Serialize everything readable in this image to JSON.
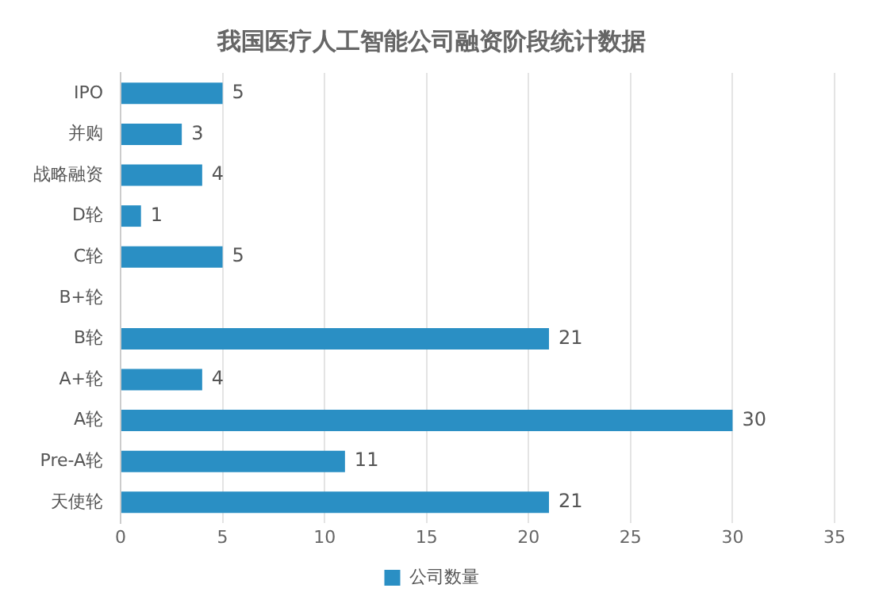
{
  "chart_data": {
    "type": "bar",
    "orientation": "horizontal",
    "title": "我国医疗人工智能公司融资阶段统计数据",
    "categories": [
      "IPO",
      "并购",
      "战略融资",
      "D轮",
      "C轮",
      "B+轮",
      "B轮",
      "A+轮",
      "A轮",
      "Pre-A轮",
      "天使轮"
    ],
    "series": [
      {
        "name": "公司数量",
        "color": "#2a8fc4",
        "values": [
          5,
          3,
          4,
          1,
          5,
          null,
          21,
          4,
          30,
          11,
          21
        ]
      }
    ],
    "xlim": [
      0,
      35
    ],
    "xticks": [
      0,
      5,
      10,
      15,
      20,
      25,
      30,
      35
    ],
    "grid": "x",
    "legend": "bottom",
    "data_labels": true
  }
}
